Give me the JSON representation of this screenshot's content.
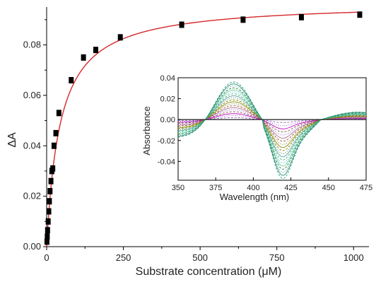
{
  "chart_data": [
    {
      "type": "scatter",
      "xlabel": "Substrate concentration (μM)",
      "ylabel": "ΔA",
      "xlim": [
        0,
        1050
      ],
      "ylim": [
        0,
        0.095
      ],
      "xticks": [
        0,
        250,
        500,
        750,
        1000
      ],
      "yticks": [
        0.0,
        0.02,
        0.04,
        0.06,
        0.08
      ],
      "xtick_labels": [
        "0",
        "250",
        "500",
        "750",
        "1000"
      ],
      "ytick_labels": [
        "0.00",
        "0.02",
        "0.04",
        "0.06",
        "0.08"
      ],
      "series": [
        {
          "marker": "square",
          "color": "#000000",
          "points": [
            [
              1,
              0.002
            ],
            [
              2,
              0.004
            ],
            [
              3,
              0.0065
            ],
            [
              5,
              0.01
            ],
            [
              7,
              0.014
            ],
            [
              9,
              0.018
            ],
            [
              11,
              0.022
            ],
            [
              14,
              0.026
            ],
            [
              17,
              0.03
            ],
            [
              20,
              0.031
            ],
            [
              24,
              0.04
            ],
            [
              30,
              0.045
            ],
            [
              40,
              0.053
            ],
            [
              80,
              0.066
            ],
            [
              120,
              0.075
            ],
            [
              160,
              0.078
            ],
            [
              240,
              0.083
            ],
            [
              440,
              0.088
            ],
            [
              640,
              0.09
            ],
            [
              830,
              0.091
            ],
            [
              1020,
              0.092
            ]
          ]
        }
      ],
      "fit": {
        "type": "line",
        "color": "#d62728",
        "model": "hyperbolic",
        "vmax": 0.097,
        "km": 44
      },
      "grid": false
    },
    {
      "type": "line",
      "xlabel": "Wavelength (nm)",
      "ylabel": "Absorbance",
      "xlim": [
        350,
        475
      ],
      "ylim": [
        -0.058,
        0.04
      ],
      "xticks": [
        350,
        375,
        400,
        425,
        450,
        475
      ],
      "yticks": [
        0.04,
        0.02,
        0.0,
        -0.02,
        -0.04
      ],
      "xtick_labels": [
        "350",
        "375",
        "400",
        "425",
        "450",
        "475"
      ],
      "ytick_labels": [
        "0.04",
        "0.02",
        "0.00",
        "-0.02",
        "-0.04"
      ],
      "spectra": {
        "count": 20,
        "max_peak_x": 387,
        "max_peak_y": 0.036,
        "min_x": 419,
        "min_y": -0.056,
        "zero_crossings": [
          406,
          445
        ],
        "colors": [
          "#000000",
          "#9467bd",
          "#7b3fa0",
          "#c000c0",
          "#8c564b",
          "#6a5acd",
          "#b07090",
          "#a0522d",
          "#556b2f",
          "#8b8b00",
          "#808000",
          "#2e8b57",
          "#5f9ea0",
          "#3cb371",
          "#20b2aa",
          "#66cdaa",
          "#228b22",
          "#4682b4",
          "#2f8f6f",
          "#1f9e89"
        ]
      },
      "grid": false
    }
  ]
}
